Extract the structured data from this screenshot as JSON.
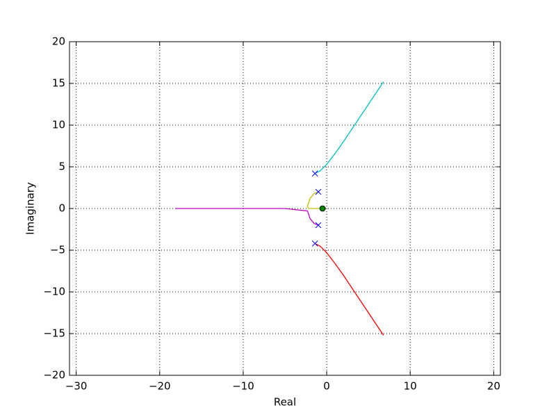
{
  "chart_data": {
    "type": "line",
    "xlabel": "Real",
    "ylabel": "Imaginary",
    "xlim": [
      -30.8,
      20.8
    ],
    "ylim": [
      -20,
      20
    ],
    "xticks": [
      {
        "value": -30,
        "label": "−30"
      },
      {
        "value": -20,
        "label": "−20"
      },
      {
        "value": -10,
        "label": "−10"
      },
      0,
      10,
      20
    ],
    "yticks": [
      {
        "value": -20,
        "label": "−20"
      },
      {
        "value": -15,
        "label": "−15"
      },
      {
        "value": -10,
        "label": "−10"
      },
      {
        "value": -5,
        "label": "−5"
      },
      0,
      5,
      10,
      15,
      20
    ],
    "grid": true,
    "series": [
      {
        "color": "#00bfbf",
        "marker": "none",
        "x": [
          -1.4,
          -0.8,
          0,
          1,
          2,
          3,
          4,
          5,
          6,
          6.8
        ],
        "y": [
          4.2,
          4.5,
          5.3,
          6.6,
          8.0,
          9.5,
          11,
          12.5,
          14,
          15.2
        ]
      },
      {
        "color": "#ff0000",
        "marker": "none",
        "x": [
          -1.4,
          -0.8,
          0,
          1,
          2,
          3,
          4,
          5,
          6,
          6.8
        ],
        "y": [
          -4.2,
          -4.5,
          -5.3,
          -6.6,
          -8.0,
          -9.5,
          -11,
          -12.5,
          -14,
          -15.2
        ]
      },
      {
        "color": "#bfbf00",
        "marker": "none",
        "x": [
          -1,
          -1.5,
          -2,
          -2.3,
          -2.2,
          -1.5,
          -0.5
        ],
        "y": [
          2,
          1.8,
          1.2,
          0.3,
          0,
          0,
          0
        ]
      },
      {
        "color": "#bf00bf",
        "marker": "none",
        "x": [
          -1,
          -1.5,
          -2,
          -2.3,
          -5,
          -10,
          -15,
          -18.1
        ],
        "y": [
          -2,
          -1.8,
          -1.2,
          -0.3,
          0,
          0,
          0,
          0
        ]
      },
      {
        "color": "#0000ff",
        "marker": "x",
        "x": [
          -1.4,
          -1.4,
          -1,
          -1
        ],
        "y": [
          4.2,
          -4.2,
          2,
          -2
        ]
      },
      {
        "color": "#008000",
        "marker": "o",
        "x": [
          -0.5
        ],
        "y": [
          0
        ]
      }
    ]
  }
}
